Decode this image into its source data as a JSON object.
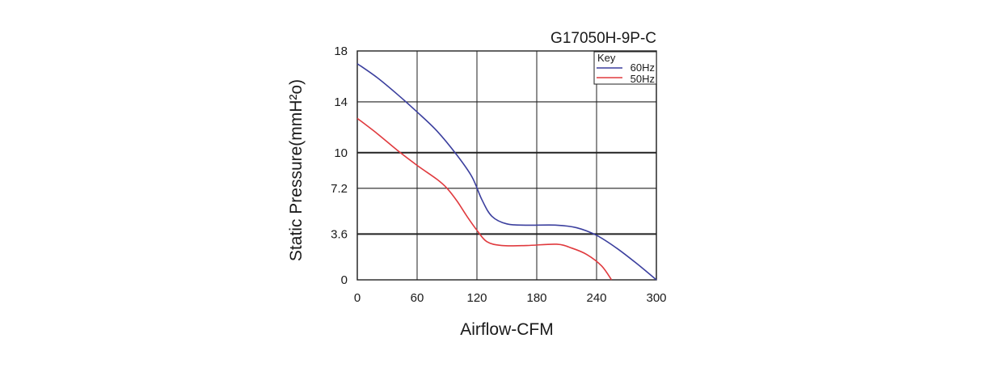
{
  "chart_data": {
    "type": "line",
    "title": "G17050H-9P-C",
    "xlabel": "Airflow-CFM",
    "ylabel": "Static Pressure(mmH²o)",
    "xlim": [
      0,
      300
    ],
    "ylim": [
      0,
      18
    ],
    "x_ticks": [
      "0",
      "60",
      "120",
      "180",
      "240",
      "300"
    ],
    "y_ticks": [
      "18",
      "14",
      "10",
      "7.2",
      "3.6",
      "0"
    ],
    "y_tick_values": [
      18,
      14,
      10,
      7.2,
      3.6,
      0
    ],
    "grid": true,
    "legend": {
      "title": "Key",
      "position": "top-right"
    },
    "series": [
      {
        "name": "60Hz",
        "color": "#3b3f9e",
        "x": [
          0,
          20,
          40,
          60,
          80,
          100,
          115,
          125,
          135,
          150,
          170,
          200,
          220,
          240,
          260,
          280,
          300
        ],
        "y": [
          17.0,
          15.9,
          14.6,
          13.2,
          11.7,
          9.8,
          8.1,
          6.3,
          5.0,
          4.4,
          4.3,
          4.3,
          4.1,
          3.5,
          2.5,
          1.3,
          0
        ]
      },
      {
        "name": "50Hz",
        "color": "#e03a3e",
        "x": [
          0,
          20,
          40,
          60,
          80,
          90,
          100,
          110,
          120,
          130,
          145,
          170,
          200,
          215,
          230,
          245,
          255
        ],
        "y": [
          12.7,
          11.5,
          10.2,
          9.0,
          7.9,
          7.2,
          6.2,
          5.0,
          3.9,
          3.0,
          2.7,
          2.7,
          2.8,
          2.5,
          2.0,
          1.1,
          0
        ]
      }
    ]
  }
}
